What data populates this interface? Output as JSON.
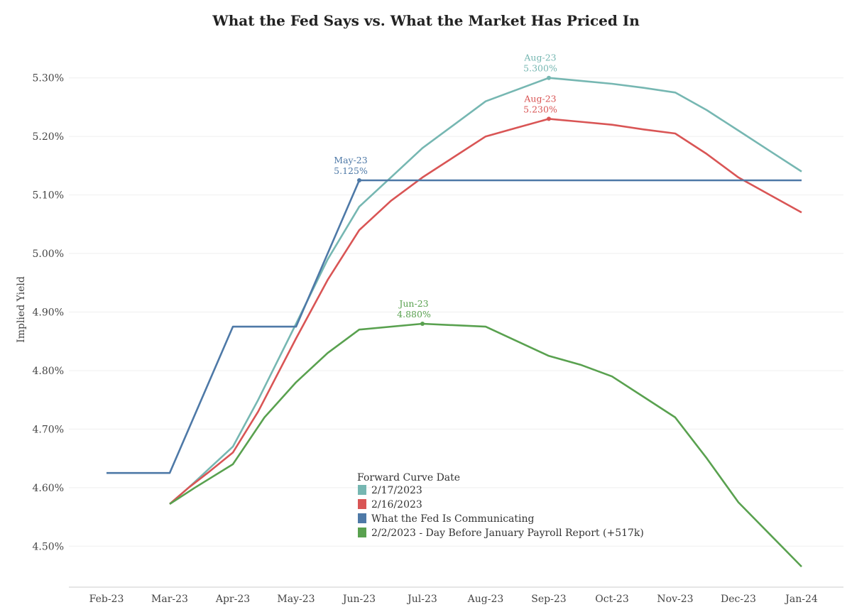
{
  "chart_data": {
    "type": "line",
    "title": "What the Fed Says vs. What the Market Has Priced In",
    "ylabel": "Implied Yield",
    "xlabel": "",
    "x_categories": [
      "Feb-23",
      "Mar-23",
      "Apr-23",
      "May-23",
      "Jun-23",
      "Jul-23",
      "Aug-23",
      "Sep-23",
      "Oct-23",
      "Nov-23",
      "Dec-23",
      "Jan-24"
    ],
    "y_ticks": [
      "4.50%",
      "4.60%",
      "4.70%",
      "4.80%",
      "4.90%",
      "5.00%",
      "5.10%",
      "5.20%",
      "5.30%"
    ],
    "ylim": [
      4.43,
      5.37
    ],
    "grid": "horizontal",
    "legend": {
      "title": "Forward Curve Date",
      "placement": "bottom-center"
    },
    "series": [
      {
        "name": "2/17/2023",
        "color": "#76b7b2",
        "points": [
          [
            1,
            4.572
          ],
          [
            1.3,
            4.6
          ],
          [
            1.6,
            4.63
          ],
          [
            2,
            4.67
          ],
          [
            2.4,
            4.75
          ],
          [
            3,
            4.88
          ],
          [
            3.5,
            4.99
          ],
          [
            4,
            5.08
          ],
          [
            4.5,
            5.13
          ],
          [
            5,
            5.18
          ],
          [
            5.5,
            5.22
          ],
          [
            6,
            5.26
          ],
          [
            6.5,
            5.28
          ],
          [
            7,
            5.3
          ],
          [
            7.5,
            5.295
          ],
          [
            8,
            5.29
          ],
          [
            8.5,
            5.283
          ],
          [
            9,
            5.275
          ],
          [
            9.5,
            5.245
          ],
          [
            10,
            5.21
          ],
          [
            10.5,
            5.175
          ],
          [
            11,
            5.14
          ]
        ],
        "annotation": {
          "x_label": "Aug-23",
          "value_label": "5.300%",
          "x": 7,
          "y": 5.3
        }
      },
      {
        "name": "2/16/2023",
        "color": "#d95555",
        "points": [
          [
            1,
            4.572
          ],
          [
            1.3,
            4.6
          ],
          [
            1.6,
            4.625
          ],
          [
            2,
            4.66
          ],
          [
            2.4,
            4.73
          ],
          [
            3,
            4.855
          ],
          [
            3.5,
            4.955
          ],
          [
            4,
            5.04
          ],
          [
            4.5,
            5.09
          ],
          [
            5,
            5.13
          ],
          [
            5.5,
            5.165
          ],
          [
            6,
            5.2
          ],
          [
            6.5,
            5.215
          ],
          [
            7,
            5.23
          ],
          [
            7.5,
            5.225
          ],
          [
            8,
            5.22
          ],
          [
            8.5,
            5.212
          ],
          [
            9,
            5.205
          ],
          [
            9.5,
            5.17
          ],
          [
            10,
            5.13
          ],
          [
            10.5,
            5.1
          ],
          [
            11,
            5.07
          ]
        ],
        "annotation": {
          "x_label": "Aug-23",
          "value_label": "5.230%",
          "x": 7,
          "y": 5.23
        }
      },
      {
        "name": "What the Fed Is Communicating",
        "color": "#4e79a7",
        "points": [
          [
            0,
            4.625
          ],
          [
            1,
            4.625
          ],
          [
            2,
            4.875
          ],
          [
            3,
            4.875
          ],
          [
            4,
            5.125
          ],
          [
            11,
            5.125
          ]
        ],
        "annotation": {
          "x_label": "May-23",
          "value_label": "5.125%",
          "x": 4,
          "y": 5.125
        }
      },
      {
        "name": "2/2/2023 - Day Before January Payroll Report (+517k)",
        "color": "#59a14f",
        "points": [
          [
            1,
            4.572
          ],
          [
            1.4,
            4.6
          ],
          [
            2,
            4.64
          ],
          [
            2.5,
            4.72
          ],
          [
            3,
            4.78
          ],
          [
            3.5,
            4.83
          ],
          [
            4,
            4.87
          ],
          [
            5,
            4.88
          ],
          [
            6,
            4.875
          ],
          [
            6.5,
            4.85
          ],
          [
            7,
            4.825
          ],
          [
            7.5,
            4.81
          ],
          [
            8,
            4.79
          ],
          [
            8.5,
            4.755
          ],
          [
            9,
            4.72
          ],
          [
            9.5,
            4.65
          ],
          [
            10,
            4.575
          ],
          [
            10.5,
            4.52
          ],
          [
            11,
            4.465
          ]
        ],
        "annotation": {
          "x_label": "Jun-23",
          "value_label": "4.880%",
          "x": 5,
          "y": 4.88
        }
      }
    ]
  }
}
